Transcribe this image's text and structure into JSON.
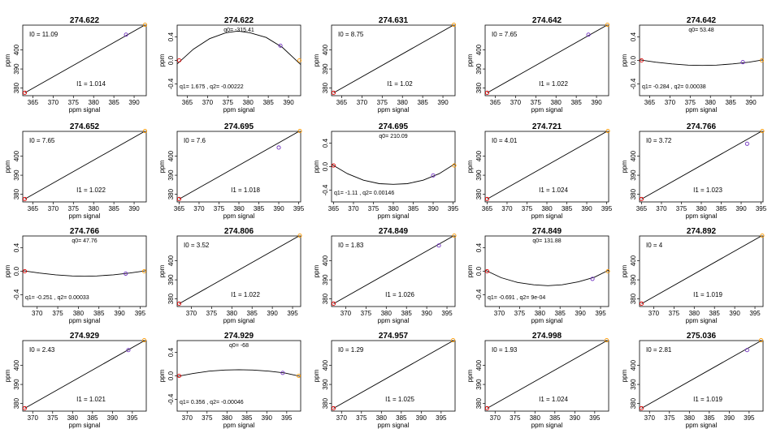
{
  "figure": {
    "xlabel": "ppm signal",
    "ylabel": "ppm"
  },
  "chart_data": [
    {
      "type": "line",
      "title": "274.622",
      "kind": "lin",
      "xlim": [
        362.5,
        393
      ],
      "xticks": [
        365,
        370,
        375,
        380,
        385,
        390
      ],
      "ylim": [
        376,
        413
      ],
      "yticks": [
        380,
        390,
        400
      ],
      "points": [
        {
          "x": 363.0,
          "y": 377.5,
          "color": "#e00000"
        },
        {
          "x": 388.0,
          "y": 408.0,
          "color": "#7030c0"
        },
        {
          "x": 392.7,
          "y": 413.2,
          "color": "#ff9900"
        }
      ],
      "labels": [
        "I0 =  11.09",
        "I1 =  1.014"
      ],
      "lx": [
        363.0,
        393.0
      ],
      "ly": [
        377.5,
        413.5
      ]
    },
    {
      "type": "line",
      "title": "274.622",
      "kind": "quad",
      "xlim": [
        362.5,
        393
      ],
      "xticks": [
        365,
        370,
        375,
        380,
        385,
        390
      ],
      "ylim": [
        -0.6,
        0.6
      ],
      "yticks": [
        -0.4,
        0.0,
        0.4
      ],
      "points": [
        {
          "x": 363.0,
          "y": 0.0,
          "color": "#e00000"
        },
        {
          "x": 388.0,
          "y": 0.25,
          "color": "#7030c0"
        },
        {
          "x": 392.7,
          "y": 0.0,
          "color": "#ff9900"
        }
      ],
      "labels": [
        "q0= -315.41",
        "q1= 1.675 , q2= -0.00222"
      ],
      "curve": [
        [
          362.5,
          -0.06
        ],
        [
          366.5,
          0.19
        ],
        [
          370.5,
          0.37
        ],
        [
          374.5,
          0.47
        ],
        [
          377.5,
          0.5
        ],
        [
          380.5,
          0.47
        ],
        [
          384.5,
          0.39
        ],
        [
          388.5,
          0.22
        ],
        [
          393.0,
          -0.07
        ]
      ]
    },
    {
      "type": "line",
      "title": "274.631",
      "kind": "lin",
      "xlim": [
        362.5,
        393
      ],
      "xticks": [
        365,
        370,
        375,
        380,
        385,
        390
      ],
      "ylim": [
        376,
        413
      ],
      "yticks": [
        380,
        390,
        400
      ],
      "points": [
        {
          "x": 363.0,
          "y": 377.5,
          "color": "#e00000"
        },
        {
          "x": 392.7,
          "y": 413.2,
          "color": "#ff9900"
        }
      ],
      "labels": [
        "I0 =  8.75",
        "I1 =  1.02"
      ],
      "lx": [
        363.0,
        393.0
      ],
      "ly": [
        377.5,
        413.5
      ]
    },
    {
      "type": "line",
      "title": "274.642",
      "kind": "lin",
      "xlim": [
        362.5,
        393
      ],
      "xticks": [
        365,
        370,
        375,
        380,
        385,
        390
      ],
      "ylim": [
        376,
        413
      ],
      "yticks": [
        380,
        390,
        400
      ],
      "points": [
        {
          "x": 363.0,
          "y": 377.5,
          "color": "#e00000"
        },
        {
          "x": 388.0,
          "y": 408.0,
          "color": "#7030c0"
        },
        {
          "x": 392.7,
          "y": 413.2,
          "color": "#ff9900"
        }
      ],
      "labels": [
        "I0 =  7.65",
        "I1 =  1.022"
      ],
      "lx": [
        363.0,
        393.0
      ],
      "ly": [
        377.5,
        413.5
      ]
    },
    {
      "type": "line",
      "title": "274.642",
      "kind": "quad",
      "xlim": [
        362.5,
        393
      ],
      "xticks": [
        365,
        370,
        375,
        380,
        385,
        390
      ],
      "ylim": [
        -0.6,
        0.6
      ],
      "yticks": [
        -0.4,
        0.0,
        0.4
      ],
      "points": [
        {
          "x": 363.0,
          "y": 0.0,
          "color": "#e00000"
        },
        {
          "x": 388.0,
          "y": -0.03,
          "color": "#7030c0"
        },
        {
          "x": 392.7,
          "y": 0.0,
          "color": "#ff9900"
        }
      ],
      "labels": [
        "q0= 53.48",
        "q1= -0.284 , q2= 0.00038"
      ],
      "curve": [
        [
          362.5,
          0.01
        ],
        [
          366.5,
          -0.03
        ],
        [
          370.5,
          -0.06
        ],
        [
          374.5,
          -0.08
        ],
        [
          378.0,
          -0.085
        ],
        [
          381.5,
          -0.08
        ],
        [
          385.5,
          -0.06
        ],
        [
          389.5,
          -0.03
        ],
        [
          393.0,
          0.01
        ]
      ]
    },
    {
      "type": "line",
      "title": "274.652",
      "kind": "lin",
      "xlim": [
        362.5,
        393
      ],
      "xticks": [
        365,
        370,
        375,
        380,
        385,
        390
      ],
      "ylim": [
        376,
        413
      ],
      "yticks": [
        380,
        390,
        400
      ],
      "points": [
        {
          "x": 363.0,
          "y": 377.5,
          "color": "#e00000"
        },
        {
          "x": 392.7,
          "y": 413.2,
          "color": "#ff9900"
        }
      ],
      "labels": [
        "I0 =  7.65",
        "I1 =  1.022"
      ],
      "lx": [
        363.0,
        393.0
      ],
      "ly": [
        377.5,
        413.5
      ]
    },
    {
      "type": "line",
      "title": "274.695",
      "kind": "lin",
      "xlim": [
        364.5,
        395.5
      ],
      "xticks": [
        365,
        370,
        375,
        380,
        385,
        390,
        395
      ],
      "ylim": [
        376,
        413
      ],
      "yticks": [
        380,
        390,
        400
      ],
      "points": [
        {
          "x": 365.0,
          "y": 377.5,
          "color": "#e00000"
        },
        {
          "x": 390.0,
          "y": 404.5,
          "color": "#7030c0"
        },
        {
          "x": 395.3,
          "y": 413.2,
          "color": "#ff9900"
        }
      ],
      "labels": [
        "I0 =  7.6",
        "I1 =  1.018"
      ],
      "lx": [
        365.0,
        395.5
      ],
      "ly": [
        377.5,
        413.5
      ]
    },
    {
      "type": "line",
      "title": "274.695",
      "kind": "quad",
      "xlim": [
        364.5,
        395.5
      ],
      "xticks": [
        365,
        370,
        375,
        380,
        385,
        390,
        395
      ],
      "ylim": [
        -0.6,
        0.6
      ],
      "yticks": [
        -0.4,
        0.0,
        0.4
      ],
      "points": [
        {
          "x": 365.0,
          "y": 0.02,
          "color": "#e00000"
        },
        {
          "x": 390.0,
          "y": -0.15,
          "color": "#7030c0"
        },
        {
          "x": 395.3,
          "y": 0.02,
          "color": "#ff9900"
        }
      ],
      "labels": [
        "q0= 210.09",
        "q1= -1.11 , q2= 0.00146"
      ],
      "curve": [
        [
          364.5,
          0.04
        ],
        [
          368.5,
          -0.12
        ],
        [
          372.5,
          -0.23
        ],
        [
          376.5,
          -0.29
        ],
        [
          380.0,
          -0.3
        ],
        [
          383.5,
          -0.29
        ],
        [
          387.5,
          -0.23
        ],
        [
          391.5,
          -0.12
        ],
        [
          395.5,
          0.05
        ]
      ]
    },
    {
      "type": "line",
      "title": "274.721",
      "kind": "lin",
      "xlim": [
        364.5,
        395.5
      ],
      "xticks": [
        365,
        370,
        375,
        380,
        385,
        390,
        395
      ],
      "ylim": [
        376,
        413
      ],
      "yticks": [
        380,
        390,
        400
      ],
      "points": [
        {
          "x": 365.0,
          "y": 377.5,
          "color": "#e00000"
        },
        {
          "x": 395.3,
          "y": 413.2,
          "color": "#ff9900"
        }
      ],
      "labels": [
        "I0 =  4.01",
        "I1 =  1.024"
      ],
      "lx": [
        365.0,
        395.5
      ],
      "ly": [
        377.5,
        413.5
      ]
    },
    {
      "type": "line",
      "title": "274.766",
      "kind": "lin",
      "xlim": [
        364.5,
        395.5
      ],
      "xticks": [
        365,
        370,
        375,
        380,
        385,
        390,
        395
      ],
      "ylim": [
        376,
        413
      ],
      "yticks": [
        380,
        390,
        400
      ],
      "points": [
        {
          "x": 365.0,
          "y": 377.5,
          "color": "#e00000"
        },
        {
          "x": 391.5,
          "y": 406.5,
          "color": "#7030c0"
        },
        {
          "x": 395.3,
          "y": 413.2,
          "color": "#ff9900"
        }
      ],
      "labels": [
        "I0 =  3.72",
        "I1 =  1.023"
      ],
      "lx": [
        365.0,
        395.5
      ],
      "ly": [
        377.5,
        413.5
      ]
    },
    {
      "type": "line",
      "title": "274.766",
      "kind": "quad",
      "xlim": [
        366.5,
        396.5
      ],
      "xticks": [
        370,
        375,
        380,
        385,
        390,
        395
      ],
      "ylim": [
        -0.6,
        0.6
      ],
      "yticks": [
        -0.4,
        0.0,
        0.4
      ],
      "points": [
        {
          "x": 367.0,
          "y": 0.0,
          "color": "#e00000"
        },
        {
          "x": 391.5,
          "y": -0.04,
          "color": "#7030c0"
        },
        {
          "x": 396.0,
          "y": 0.0,
          "color": "#ff9900"
        }
      ],
      "labels": [
        "q0= 47.76",
        "q1= -0.251 , q2= 0.00033"
      ],
      "curve": [
        [
          366.5,
          0.01
        ],
        [
          370.5,
          -0.03
        ],
        [
          374.5,
          -0.06
        ],
        [
          378.5,
          -0.08
        ],
        [
          381.5,
          -0.085
        ],
        [
          384.5,
          -0.08
        ],
        [
          388.5,
          -0.06
        ],
        [
          392.5,
          -0.03
        ],
        [
          396.5,
          0.01
        ]
      ]
    },
    {
      "type": "line",
      "title": "274.806",
      "kind": "lin",
      "xlim": [
        366.5,
        397
      ],
      "xticks": [
        370,
        375,
        380,
        385,
        390,
        395
      ],
      "ylim": [
        376,
        413
      ],
      "yticks": [
        380,
        390,
        400
      ],
      "points": [
        {
          "x": 367.0,
          "y": 377.5,
          "color": "#e00000"
        },
        {
          "x": 396.8,
          "y": 413.2,
          "color": "#ff9900"
        }
      ],
      "labels": [
        "I0 =  3.52",
        "I1 =  1.022"
      ],
      "lx": [
        367.0,
        397.0
      ],
      "ly": [
        377.5,
        413.5
      ]
    },
    {
      "type": "line",
      "title": "274.849",
      "kind": "lin",
      "xlim": [
        366.5,
        397
      ],
      "xticks": [
        370,
        375,
        380,
        385,
        390,
        395
      ],
      "ylim": [
        376,
        413
      ],
      "yticks": [
        380,
        390,
        400
      ],
      "points": [
        {
          "x": 367.0,
          "y": 377.5,
          "color": "#e00000"
        },
        {
          "x": 393.0,
          "y": 408.0,
          "color": "#7030c0"
        },
        {
          "x": 396.8,
          "y": 413.2,
          "color": "#ff9900"
        }
      ],
      "labels": [
        "I0 =  1.83",
        "I1 =  1.026"
      ],
      "lx": [
        367.0,
        397.0
      ],
      "ly": [
        377.5,
        413.5
      ]
    },
    {
      "type": "line",
      "title": "274.849",
      "kind": "quad",
      "xlim": [
        366.5,
        397
      ],
      "xticks": [
        370,
        375,
        380,
        385,
        390,
        395
      ],
      "ylim": [
        -0.6,
        0.6
      ],
      "yticks": [
        -0.4,
        0.0,
        0.4
      ],
      "points": [
        {
          "x": 367.0,
          "y": 0.0,
          "color": "#e00000"
        },
        {
          "x": 393.0,
          "y": -0.13,
          "color": "#7030c0"
        },
        {
          "x": 396.8,
          "y": 0.0,
          "color": "#ff9900"
        }
      ],
      "labels": [
        "q0= 131.88",
        "q1= -0.691 , q2= 9e-04"
      ],
      "curve": [
        [
          366.5,
          0.02
        ],
        [
          370.5,
          -0.11
        ],
        [
          374.5,
          -0.19
        ],
        [
          378.5,
          -0.23
        ],
        [
          382.0,
          -0.245
        ],
        [
          385.5,
          -0.23
        ],
        [
          389.5,
          -0.18
        ],
        [
          393.5,
          -0.1
        ],
        [
          397.0,
          0.02
        ]
      ]
    },
    {
      "type": "line",
      "title": "274.892",
      "kind": "lin",
      "xlim": [
        366.5,
        397
      ],
      "xticks": [
        370,
        375,
        380,
        385,
        390,
        395
      ],
      "ylim": [
        376,
        413
      ],
      "yticks": [
        380,
        390,
        400
      ],
      "points": [
        {
          "x": 367.0,
          "y": 377.5,
          "color": "#e00000"
        },
        {
          "x": 396.8,
          "y": 413.2,
          "color": "#ff9900"
        }
      ],
      "labels": [
        "I0 =  4",
        "I1 =  1.019"
      ],
      "lx": [
        367.0,
        397.0
      ],
      "ly": [
        377.5,
        413.5
      ]
    },
    {
      "type": "line",
      "title": "274.929",
      "kind": "lin",
      "xlim": [
        367.5,
        398.5
      ],
      "xticks": [
        370,
        375,
        380,
        385,
        390,
        395
      ],
      "ylim": [
        376,
        413
      ],
      "yticks": [
        380,
        390,
        400
      ],
      "points": [
        {
          "x": 368.0,
          "y": 377.5,
          "color": "#e00000"
        },
        {
          "x": 394.0,
          "y": 408.0,
          "color": "#7030c0"
        },
        {
          "x": 398.0,
          "y": 413.2,
          "color": "#ff9900"
        }
      ],
      "labels": [
        "I0 =  2.43",
        "I1 =  1.021"
      ],
      "lx": [
        368.0,
        398.5
      ],
      "ly": [
        377.5,
        413.5
      ]
    },
    {
      "type": "line",
      "title": "274.929",
      "kind": "quad",
      "xlim": [
        367.5,
        398.5
      ],
      "xticks": [
        370,
        375,
        380,
        385,
        390,
        395
      ],
      "ylim": [
        -0.6,
        0.6
      ],
      "yticks": [
        -0.4,
        0.0,
        0.4
      ],
      "points": [
        {
          "x": 368.0,
          "y": 0.0,
          "color": "#e00000"
        },
        {
          "x": 394.0,
          "y": 0.05,
          "color": "#7030c0"
        },
        {
          "x": 398.0,
          "y": 0.0,
          "color": "#ff9900"
        }
      ],
      "labels": [
        "q0= -68",
        "q1= 0.356 , q2= -0.00046"
      ],
      "curve": [
        [
          367.5,
          -0.01
        ],
        [
          371.5,
          0.04
        ],
        [
          375.5,
          0.08
        ],
        [
          379.5,
          0.1
        ],
        [
          383.0,
          0.105
        ],
        [
          386.5,
          0.1
        ],
        [
          390.5,
          0.08
        ],
        [
          394.5,
          0.05
        ],
        [
          398.5,
          -0.01
        ]
      ]
    },
    {
      "type": "line",
      "title": "274.957",
      "kind": "lin",
      "xlim": [
        367.5,
        398.5
      ],
      "xticks": [
        370,
        375,
        380,
        385,
        390,
        395
      ],
      "ylim": [
        376,
        413
      ],
      "yticks": [
        380,
        390,
        400
      ],
      "points": [
        {
          "x": 368.0,
          "y": 377.5,
          "color": "#e00000"
        },
        {
          "x": 398.0,
          "y": 413.2,
          "color": "#ff9900"
        }
      ],
      "labels": [
        "I0 =  1.29",
        "I1 =  1.025"
      ],
      "lx": [
        368.0,
        398.5
      ],
      "ly": [
        377.5,
        413.5
      ]
    },
    {
      "type": "line",
      "title": "274.998",
      "kind": "lin",
      "xlim": [
        367.5,
        398.5
      ],
      "xticks": [
        370,
        375,
        380,
        385,
        390,
        395
      ],
      "ylim": [
        376,
        413
      ],
      "yticks": [
        380,
        390,
        400
      ],
      "points": [
        {
          "x": 368.0,
          "y": 377.5,
          "color": "#e00000"
        },
        {
          "x": 398.0,
          "y": 413.2,
          "color": "#ff9900"
        }
      ],
      "labels": [
        "I0 =  1.93",
        "I1 =  1.024"
      ],
      "lx": [
        368.0,
        398.5
      ],
      "ly": [
        377.5,
        413.5
      ]
    },
    {
      "type": "line",
      "title": "275.036",
      "kind": "lin",
      "xlim": [
        367.5,
        398.5
      ],
      "xticks": [
        370,
        375,
        380,
        385,
        390,
        395
      ],
      "ylim": [
        376,
        413
      ],
      "yticks": [
        380,
        390,
        400
      ],
      "points": [
        {
          "x": 368.0,
          "y": 377.5,
          "color": "#e00000"
        },
        {
          "x": 394.5,
          "y": 408.0,
          "color": "#7030c0"
        },
        {
          "x": 398.0,
          "y": 413.2,
          "color": "#ff9900"
        }
      ],
      "labels": [
        "I0 =  2.81",
        "I1 =  1.019"
      ],
      "lx": [
        368.0,
        398.5
      ],
      "ly": [
        377.5,
        413.5
      ]
    }
  ]
}
